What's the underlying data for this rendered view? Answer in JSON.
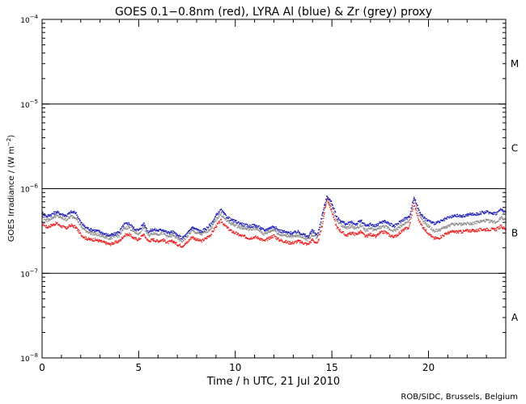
{
  "chart_data": {
    "type": "scatter",
    "title": "GOES 0.1−0.8nm (red), LYRA Al (blue) & Zr (grey) proxy",
    "xlabel": "Time / h UTC, 21 Jul 2010",
    "ylabel_main": "GOES Irradiance / (W m",
    "ylabel_exp": "−2",
    "ylabel_close": ")",
    "xlim": [
      0,
      24
    ],
    "ylim": [
      1e-08,
      0.0001
    ],
    "yscale": "log",
    "x_ticks": [
      {
        "value": 0,
        "label": "0"
      },
      {
        "value": 5,
        "label": "5"
      },
      {
        "value": 10,
        "label": "10"
      },
      {
        "value": 15,
        "label": "15"
      },
      {
        "value": 20,
        "label": "20"
      }
    ],
    "y_ticks": [
      {
        "exp": -4,
        "base": "10",
        "sup": "−4"
      },
      {
        "exp": -5,
        "base": "10",
        "sup": "−5"
      },
      {
        "exp": -6,
        "base": "10",
        "sup": "−6"
      },
      {
        "exp": -7,
        "base": "10",
        "sup": "−7"
      },
      {
        "exp": -8,
        "base": "10",
        "sup": "−8"
      }
    ],
    "flare_class_lines": [
      1e-07,
      1e-06,
      1e-05
    ],
    "flare_classes": [
      {
        "label": "M",
        "y": 3e-05
      },
      {
        "label": "C",
        "y": 3e-06
      },
      {
        "label": "B",
        "y": 3e-07
      },
      {
        "label": "A",
        "y": 3e-08
      }
    ],
    "series": [
      {
        "name": "GOES 0.1-0.8nm",
        "color": "#ee1c1c",
        "x": [
          0,
          0.25,
          0.5,
          0.75,
          1,
          1.25,
          1.5,
          1.75,
          2,
          2.25,
          2.5,
          2.75,
          3,
          3.25,
          3.5,
          3.75,
          4,
          4.25,
          4.5,
          4.75,
          5,
          5.25,
          5.5,
          5.75,
          6,
          6.25,
          6.5,
          6.75,
          7,
          7.25,
          7.5,
          7.75,
          8,
          8.25,
          8.5,
          8.75,
          9,
          9.25,
          9.5,
          9.75,
          10,
          10.25,
          10.5,
          10.75,
          11,
          11.25,
          11.5,
          11.75,
          12,
          12.25,
          12.5,
          12.75,
          13,
          13.25,
          13.5,
          13.75,
          14,
          14.25,
          14.5,
          14.75,
          15,
          15.25,
          15.5,
          15.75,
          16,
          16.25,
          16.5,
          16.75,
          17,
          17.25,
          17.5,
          17.75,
          18,
          18.25,
          18.5,
          18.75,
          19,
          19.25,
          19.5,
          19.75,
          20,
          20.25,
          20.5,
          20.75,
          21,
          21.25,
          21.5,
          21.75,
          22,
          22.25,
          22.5,
          22.75,
          23,
          23.25,
          23.5,
          23.75,
          24
        ],
        "y": [
          3.9e-07,
          3.5e-07,
          3.7e-07,
          3.9e-07,
          3.6e-07,
          3.4e-07,
          3.7e-07,
          3.5e-07,
          2.9e-07,
          2.6e-07,
          2.5e-07,
          2.5e-07,
          2.4e-07,
          2.3e-07,
          2.2e-07,
          2.3e-07,
          2.4e-07,
          2.8e-07,
          2.9e-07,
          2.6e-07,
          2.5e-07,
          2.9e-07,
          2.4e-07,
          2.5e-07,
          2.4e-07,
          2.5e-07,
          2.3e-07,
          2.4e-07,
          2.2e-07,
          2.1e-07,
          2.3e-07,
          2.7e-07,
          2.5e-07,
          2.4e-07,
          2.6e-07,
          2.9e-07,
          3.6e-07,
          4.2e-07,
          3.6e-07,
          3.2e-07,
          3e-07,
          2.8e-07,
          2.7e-07,
          2.6e-07,
          2.7e-07,
          2.6e-07,
          2.4e-07,
          2.6e-07,
          2.8e-07,
          2.5e-07,
          2.4e-07,
          2.3e-07,
          2.3e-07,
          2.4e-07,
          2.3e-07,
          2.2e-07,
          2.5e-07,
          2.2e-07,
          3.7e-07,
          7.6e-07,
          5.4e-07,
          3.5e-07,
          3.1e-07,
          2.8e-07,
          3e-07,
          2.9e-07,
          3.1e-07,
          2.7e-07,
          2.9e-07,
          2.7e-07,
          3e-07,
          3.1e-07,
          2.8e-07,
          2.7e-07,
          3e-07,
          3.3e-07,
          3.5e-07,
          6.6e-07,
          4.2e-07,
          3.4e-07,
          3e-07,
          2.6e-07,
          2.6e-07,
          2.8e-07,
          3e-07,
          3.1e-07,
          3.1e-07,
          3.1e-07,
          3.2e-07,
          3.2e-07,
          3.2e-07,
          3.3e-07,
          3.3e-07,
          3.3e-07,
          3.3e-07,
          3.6e-07,
          3.3e-07
        ]
      },
      {
        "name": "LYRA Al proxy",
        "color": "#1f1fb8",
        "x": [
          0,
          0.25,
          0.5,
          0.75,
          1,
          1.25,
          1.5,
          1.75,
          2,
          2.25,
          2.5,
          2.75,
          3,
          3.25,
          3.5,
          3.75,
          4,
          4.25,
          4.5,
          4.75,
          5,
          5.25,
          5.5,
          5.75,
          6,
          6.25,
          6.5,
          6.75,
          7,
          7.25,
          7.5,
          7.75,
          8,
          8.25,
          8.5,
          8.75,
          9,
          9.25,
          9.5,
          9.75,
          10,
          10.25,
          10.5,
          10.75,
          11,
          11.25,
          11.5,
          11.75,
          12,
          12.25,
          12.5,
          12.75,
          13,
          13.25,
          13.5,
          13.75,
          14,
          14.25,
          14.5,
          14.75,
          15,
          15.25,
          15.5,
          15.75,
          16,
          16.25,
          16.5,
          16.75,
          17,
          17.25,
          17.5,
          17.75,
          18,
          18.25,
          18.5,
          18.75,
          19,
          19.25,
          19.5,
          19.75,
          20,
          20.25,
          20.5,
          20.75,
          21,
          21.25,
          21.5,
          21.75,
          22,
          22.25,
          22.5,
          22.75,
          23,
          23.25,
          23.5,
          23.75,
          24
        ],
        "y": [
          5.2e-07,
          4.7e-07,
          5e-07,
          5.3e-07,
          5e-07,
          4.8e-07,
          5.3e-07,
          5.2e-07,
          4e-07,
          3.5e-07,
          3.3e-07,
          3.2e-07,
          3.1e-07,
          2.9e-07,
          2.8e-07,
          2.9e-07,
          3.1e-07,
          3.8e-07,
          3.9e-07,
          3.4e-07,
          3.2e-07,
          3.9e-07,
          3.1e-07,
          3.3e-07,
          3.2e-07,
          3.3e-07,
          3e-07,
          3.1e-07,
          2.8e-07,
          2.6e-07,
          2.9e-07,
          3.5e-07,
          3.3e-07,
          3.1e-07,
          3.4e-07,
          3.8e-07,
          4.8e-07,
          5.6e-07,
          4.8e-07,
          4.3e-07,
          4.1e-07,
          3.9e-07,
          3.7e-07,
          3.6e-07,
          3.7e-07,
          3.5e-07,
          3.2e-07,
          3.4e-07,
          3.6e-07,
          3.2e-07,
          3.1e-07,
          3e-07,
          3e-07,
          3.1e-07,
          2.9e-07,
          2.7e-07,
          3.2e-07,
          2.8e-07,
          5e-07,
          8.2e-07,
          6.8e-07,
          4.6e-07,
          4.1e-07,
          3.8e-07,
          4e-07,
          3.8e-07,
          4.2e-07,
          3.6e-07,
          3.8e-07,
          3.6e-07,
          4e-07,
          4.1e-07,
          3.8e-07,
          3.6e-07,
          4e-07,
          4.4e-07,
          4.6e-07,
          8e-07,
          5.6e-07,
          4.5e-07,
          4.2e-07,
          3.9e-07,
          4e-07,
          4.2e-07,
          4.5e-07,
          4.7e-07,
          4.8e-07,
          4.7e-07,
          4.9e-07,
          5e-07,
          5e-07,
          5.2e-07,
          5.3e-07,
          5.2e-07,
          5.1e-07,
          5.7e-07,
          5.3e-07
        ]
      },
      {
        "name": "LYRA Zr proxy",
        "color": "#8c8c8c",
        "x": [
          0,
          0.25,
          0.5,
          0.75,
          1,
          1.25,
          1.5,
          1.75,
          2,
          2.25,
          2.5,
          2.75,
          3,
          3.25,
          3.5,
          3.75,
          4,
          4.25,
          4.5,
          4.75,
          5,
          5.25,
          5.5,
          5.75,
          6,
          6.25,
          6.5,
          6.75,
          7,
          7.25,
          7.5,
          7.75,
          8,
          8.25,
          8.5,
          8.75,
          9,
          9.25,
          9.5,
          9.75,
          10,
          10.25,
          10.5,
          10.75,
          11,
          11.25,
          11.5,
          11.75,
          12,
          12.25,
          12.5,
          12.75,
          13,
          13.25,
          13.5,
          13.75,
          14,
          14.25,
          14.5,
          14.75,
          15,
          15.25,
          15.5,
          15.75,
          16,
          16.25,
          16.5,
          16.75,
          17,
          17.25,
          17.5,
          17.75,
          18,
          18.25,
          18.5,
          18.75,
          19,
          19.25,
          19.5,
          19.75,
          20,
          20.25,
          20.5,
          20.75,
          21,
          21.25,
          21.5,
          21.75,
          22,
          22.25,
          22.5,
          22.75,
          23,
          23.25,
          23.5,
          23.75,
          24
        ],
        "y": [
          4.7e-07,
          4.2e-07,
          4.5e-07,
          4.8e-07,
          4.5e-07,
          4.3e-07,
          4.7e-07,
          4.6e-07,
          3.6e-07,
          3.2e-07,
          3e-07,
          2.9e-07,
          2.8e-07,
          2.7e-07,
          2.6e-07,
          2.7e-07,
          2.8e-07,
          3.4e-07,
          3.5e-07,
          3.1e-07,
          2.9e-07,
          3.5e-07,
          2.8e-07,
          3e-07,
          2.9e-07,
          3e-07,
          2.7e-07,
          2.8e-07,
          2.6e-07,
          2.4e-07,
          2.7e-07,
          3.2e-07,
          3e-07,
          2.9e-07,
          3.1e-07,
          3.4e-07,
          4.3e-07,
          5e-07,
          4.3e-07,
          3.9e-07,
          3.7e-07,
          3.5e-07,
          3.4e-07,
          3.3e-07,
          3.4e-07,
          3.2e-07,
          2.9e-07,
          3.1e-07,
          3.3e-07,
          2.9e-07,
          2.8e-07,
          2.8e-07,
          2.7e-07,
          2.8e-07,
          2.7e-07,
          2.5e-07,
          2.9e-07,
          2.6e-07,
          4.5e-07,
          7.9e-07,
          6.2e-07,
          4.2e-07,
          3.7e-07,
          3.4e-07,
          3.6e-07,
          3.4e-07,
          3.7e-07,
          3.2e-07,
          3.4e-07,
          3.2e-07,
          3.5e-07,
          3.6e-07,
          3.3e-07,
          3.2e-07,
          3.5e-07,
          3.9e-07,
          4.1e-07,
          7.6e-07,
          5e-07,
          4e-07,
          3.6e-07,
          3.2e-07,
          3.2e-07,
          3.4e-07,
          3.6e-07,
          3.8e-07,
          3.8e-07,
          3.8e-07,
          3.9e-07,
          3.9e-07,
          4e-07,
          4.1e-07,
          4.2e-07,
          4.1e-07,
          4e-07,
          4.6e-07,
          4.3e-07
        ]
      }
    ]
  },
  "footer": {
    "credit": "ROB/SIDC, Brussels, Belgium"
  }
}
